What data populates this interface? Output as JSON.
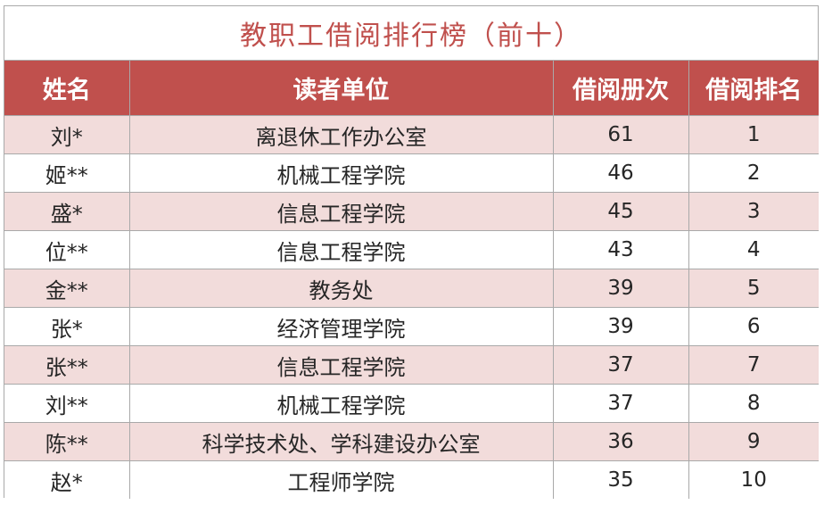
{
  "title": "教职工借阅排行榜（前十）",
  "headers": {
    "name": "姓名",
    "unit": "读者单位",
    "count": "借阅册次",
    "rank": "借阅排名"
  },
  "rows": [
    {
      "name": "刘*",
      "unit": "离退休工作办公室",
      "count": "61",
      "rank": "1"
    },
    {
      "name": "姬**",
      "unit": "机械工程学院",
      "count": "46",
      "rank": "2"
    },
    {
      "name": "盛*",
      "unit": "信息工程学院",
      "count": "45",
      "rank": "3"
    },
    {
      "name": "位**",
      "unit": "信息工程学院",
      "count": "43",
      "rank": "4"
    },
    {
      "name": "金**",
      "unit": "教务处",
      "count": "39",
      "rank": "5"
    },
    {
      "name": "张*",
      "unit": "经济管理学院",
      "count": "39",
      "rank": "6"
    },
    {
      "name": "张**",
      "unit": "信息工程学院",
      "count": "37",
      "rank": "7"
    },
    {
      "name": "刘**",
      "unit": "机械工程学院",
      "count": "37",
      "rank": "8"
    },
    {
      "name": "陈**",
      "unit": "科学技术处、学科建设办公室",
      "count": "36",
      "rank": "9"
    },
    {
      "name": "赵*",
      "unit": "工程师学院",
      "count": "35",
      "rank": "10"
    }
  ],
  "colors": {
    "header_bg": "#c0504d",
    "title_text": "#c0504d",
    "stripe_bg": "#f2dcdb"
  }
}
